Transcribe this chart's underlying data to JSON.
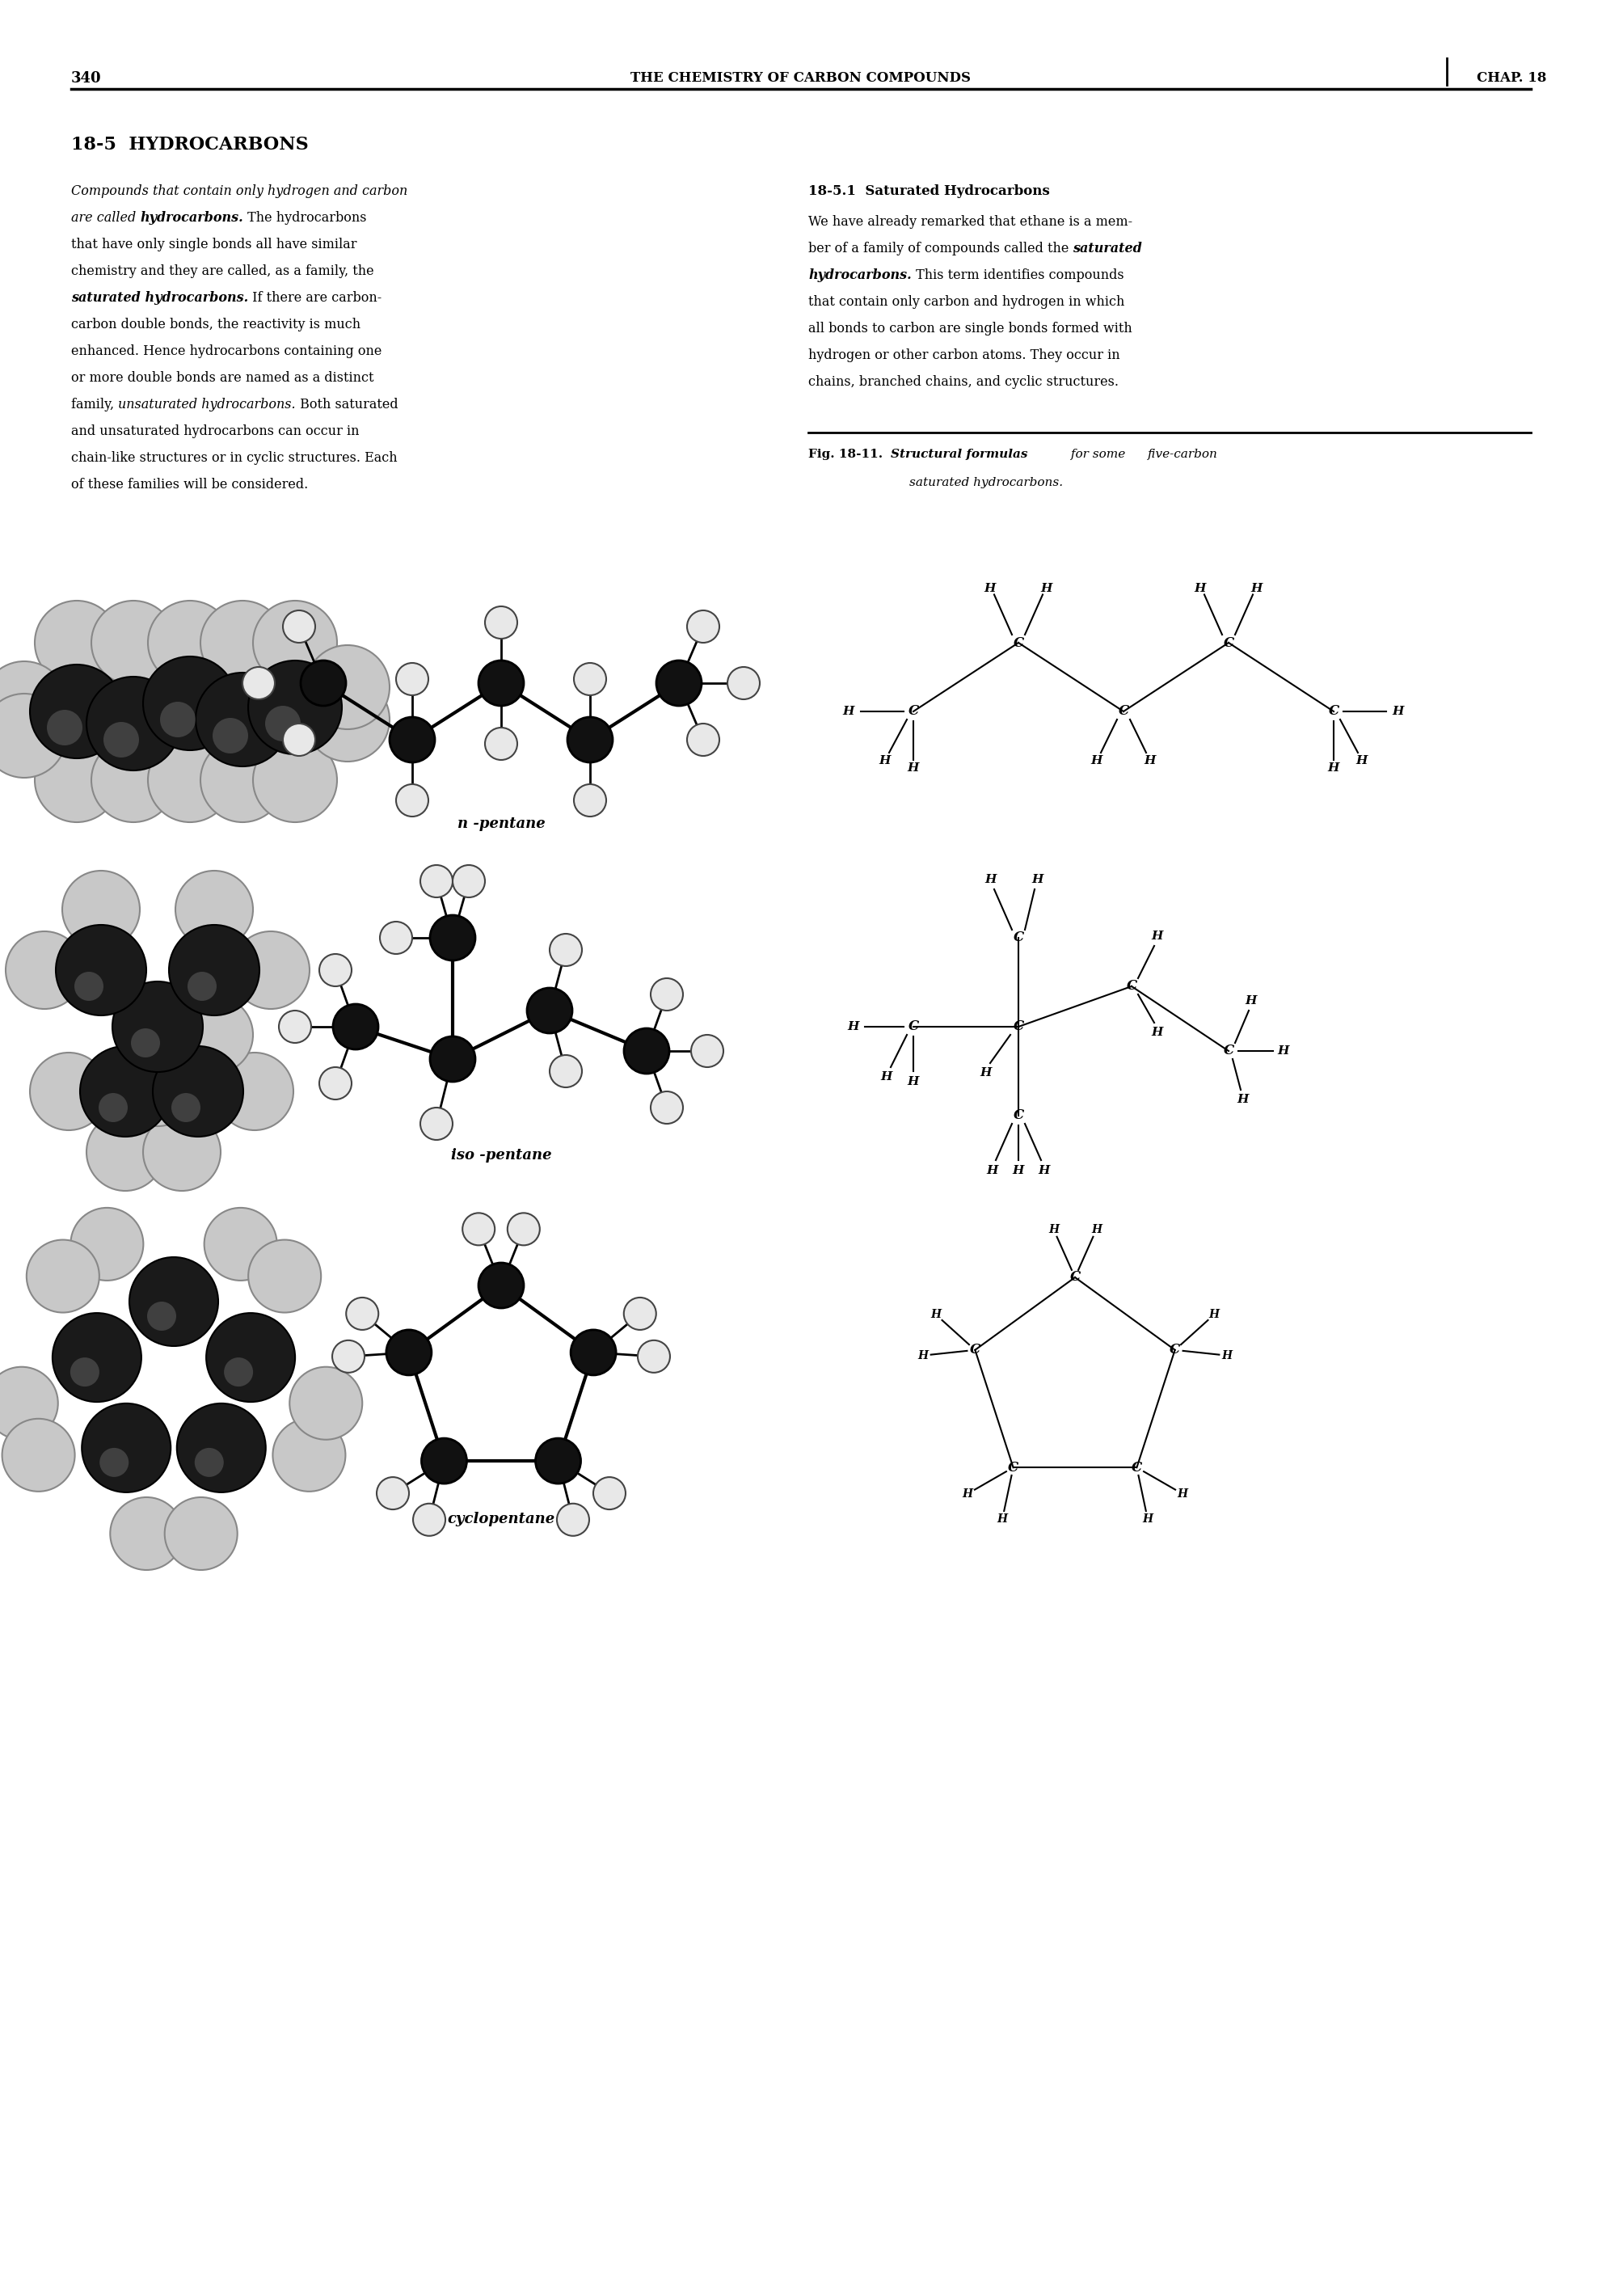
{
  "page_number": "340",
  "header_title": "THE CHEMISTRY OF CARBON COMPOUNDS",
  "header_chap": "CHAP. 18",
  "section_title": "18-5  HYDROCARBONS",
  "subsection": "18-5.1  Saturated Hydrocarbons",
  "left_col_lines": [
    {
      "parts": [
        {
          "t": "Compounds that contain only hydrogen and carbon",
          "s": "italic",
          "w": "normal"
        }
      ]
    },
    {
      "parts": [
        {
          "t": "are called ",
          "s": "italic",
          "w": "normal"
        },
        {
          "t": "hydrocarbons.",
          "s": "italic",
          "w": "bold"
        },
        {
          "t": " The hydrocarbons",
          "s": "normal",
          "w": "normal"
        }
      ]
    },
    {
      "parts": [
        {
          "t": "that have only single bonds all have similar",
          "s": "normal",
          "w": "normal"
        }
      ]
    },
    {
      "parts": [
        {
          "t": "chemistry and they are called, as a family, the",
          "s": "normal",
          "w": "normal"
        }
      ]
    },
    {
      "parts": [
        {
          "t": "saturated hydrocarbons.",
          "s": "italic",
          "w": "bold"
        },
        {
          "t": " If there are carbon-",
          "s": "normal",
          "w": "normal"
        }
      ]
    },
    {
      "parts": [
        {
          "t": "carbon double bonds, the reactivity is much",
          "s": "normal",
          "w": "normal"
        }
      ]
    },
    {
      "parts": [
        {
          "t": "enhanced. Hence hydrocarbons containing one",
          "s": "normal",
          "w": "normal"
        }
      ]
    },
    {
      "parts": [
        {
          "t": "or more double bonds are named as a distinct",
          "s": "normal",
          "w": "normal"
        }
      ]
    },
    {
      "parts": [
        {
          "t": "family, ",
          "s": "normal",
          "w": "normal"
        },
        {
          "t": "unsaturated hydrocarbons.",
          "s": "italic",
          "w": "normal"
        },
        {
          "t": " Both saturated",
          "s": "normal",
          "w": "normal"
        }
      ]
    },
    {
      "parts": [
        {
          "t": "and unsaturated hydrocarbons can occur in",
          "s": "normal",
          "w": "normal"
        }
      ]
    },
    {
      "parts": [
        {
          "t": "chain-like structures or in cyclic structures. Each",
          "s": "normal",
          "w": "normal"
        }
      ]
    },
    {
      "parts": [
        {
          "t": "of these families will be considered.",
          "s": "normal",
          "w": "normal"
        }
      ]
    }
  ],
  "right_col_lines": [
    {
      "parts": [
        {
          "t": "We have already remarked that ethane is a mem-",
          "s": "normal",
          "w": "normal"
        }
      ]
    },
    {
      "parts": [
        {
          "t": "ber of a family of compounds called the ",
          "s": "normal",
          "w": "normal"
        },
        {
          "t": "saturated",
          "s": "italic",
          "w": "bold"
        }
      ]
    },
    {
      "parts": [
        {
          "t": "hydrocarbons.",
          "s": "italic",
          "w": "bold"
        },
        {
          "t": " This term identifies compounds",
          "s": "normal",
          "w": "normal"
        }
      ]
    },
    {
      "parts": [
        {
          "t": "that contain only carbon and hydrogen in which",
          "s": "normal",
          "w": "normal"
        }
      ]
    },
    {
      "parts": [
        {
          "t": "all bonds to carbon are single bonds formed with",
          "s": "normal",
          "w": "normal"
        }
      ]
    },
    {
      "parts": [
        {
          "t": "hydrogen or other carbon atoms. They occur in",
          "s": "normal",
          "w": "normal"
        }
      ]
    },
    {
      "parts": [
        {
          "t": "chains, branched chains, and cyclic structures.",
          "s": "normal",
          "w": "normal"
        }
      ]
    }
  ],
  "bg_color": "#ffffff"
}
